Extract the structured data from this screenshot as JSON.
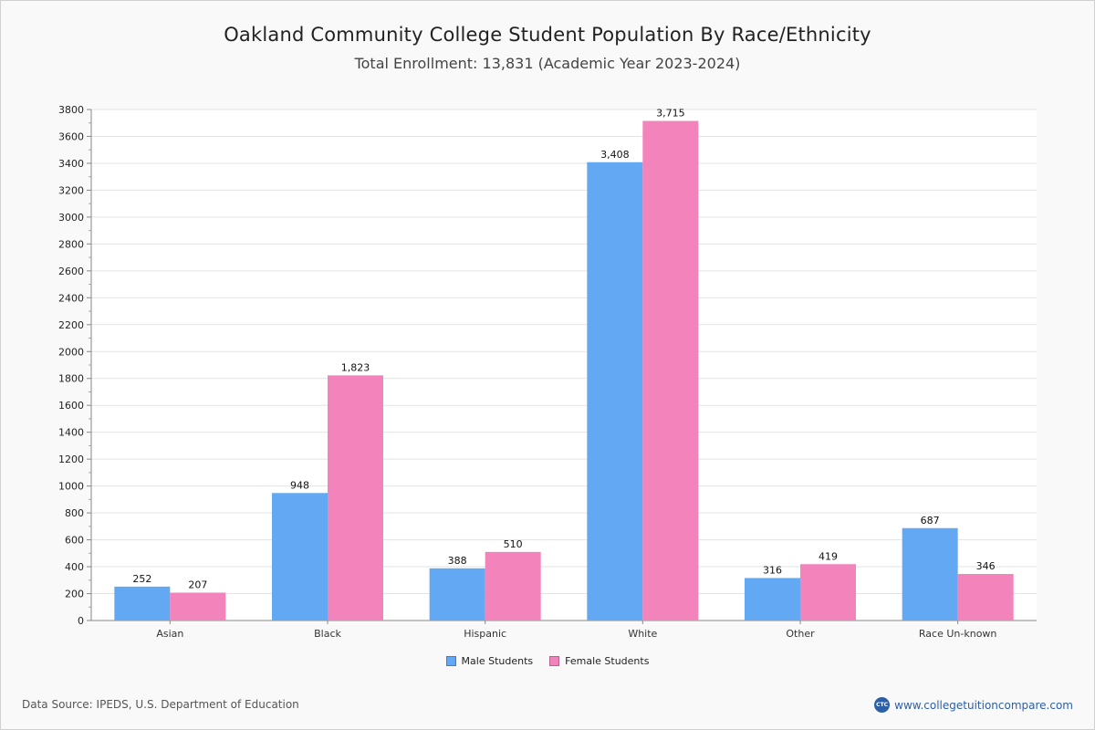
{
  "chart_data": {
    "type": "bar",
    "title": "Oakland Community College Student Population By Race/Ethnicity",
    "subtitle": "Total Enrollment: 13,831 (Academic Year 2023-2024)",
    "categories": [
      "Asian",
      "Black",
      "Hispanic",
      "White",
      "Other",
      "Race Un-known"
    ],
    "series": [
      {
        "name": "Male Students",
        "color": "#62a8f2",
        "values": [
          252,
          948,
          388,
          3408,
          316,
          687
        ],
        "labels": [
          "252",
          "948",
          "388",
          "3,408",
          "316",
          "687"
        ]
      },
      {
        "name": "Female Students",
        "color": "#f383bb",
        "values": [
          207,
          1823,
          510,
          3715,
          419,
          346
        ],
        "labels": [
          "207",
          "1,823",
          "510",
          "3,715",
          "419",
          "346"
        ]
      }
    ],
    "yticks": [
      0,
      200,
      400,
      600,
      800,
      1000,
      1200,
      1400,
      1600,
      1800,
      2000,
      2200,
      2400,
      2600,
      2800,
      3000,
      3200,
      3400,
      3600,
      3800
    ],
    "ylim": [
      0,
      3800
    ],
    "xlabel": "",
    "ylabel": "",
    "grid": true,
    "legend_position": "bottom-center"
  },
  "footer": {
    "source": "Data Source: IPEDS, U.S. Department of Education",
    "brand": "www.collegetuitioncompare.com",
    "brand_logo": "CTC"
  }
}
